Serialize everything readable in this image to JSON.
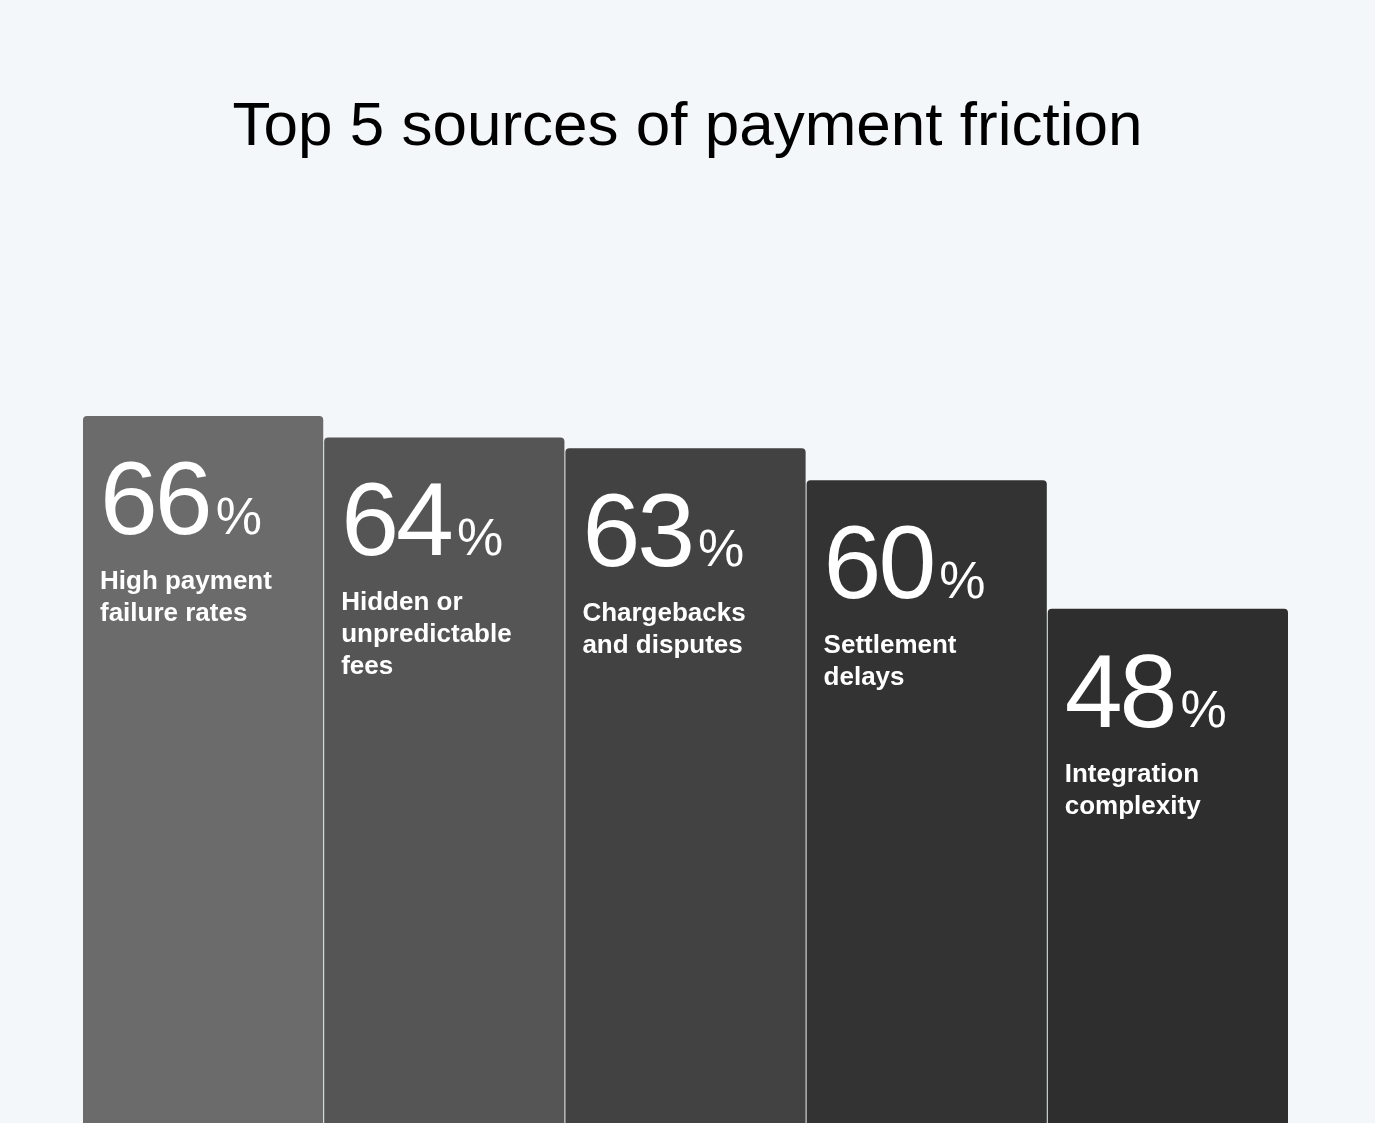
{
  "chart_data": {
    "type": "bar",
    "title": "Top 5 sources of payment friction",
    "categories": [
      "High payment failure rates",
      "Hidden or unpredictable fees",
      "Chargebacks and disputes",
      "Settlement delays",
      "Integration complexity"
    ],
    "values": [
      66,
      64,
      63,
      60,
      48
    ],
    "colors": [
      "#6b6b6b",
      "#555555",
      "#424242",
      "#333333",
      "#2e2e2e"
    ],
    "value_labels": [
      "66%",
      "64%",
      "63%",
      "60%",
      "48%"
    ]
  }
}
